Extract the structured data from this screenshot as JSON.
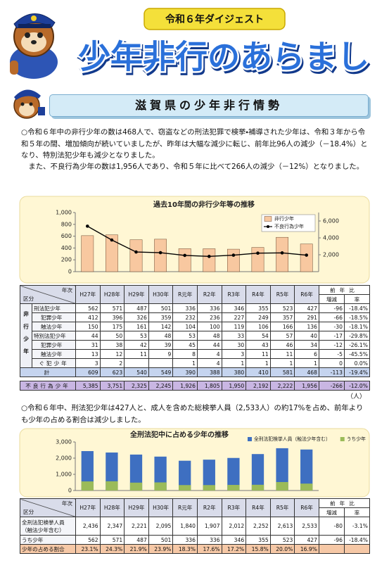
{
  "header": {
    "subtitle": "令和６年ダイジェスト",
    "title": "少年非行のあらまし"
  },
  "section_title": "滋賀県の少年非行情勢",
  "paragraphs": [
    "○令和６年中の非行少年の数は468人で、窃盗などの刑法犯罪で検挙・補導された少年は、令和３年から令和５年の間、増加傾向が続いていましたが、昨年は大幅な減少に転じ、前年比96人の減少（－18.4%）となり、特別法犯少年も減少となりました。",
    "また、不良行為少年の数は1,956人であり、令和５年に比べて266人の減少（－12%）となりました。",
    "○令和６年中、刑法犯少年は427人と、成人を含めた総検挙人員（2,533人）の約17%を占め、前年よりも少年の占める割合は減少しました。"
  ],
  "chart_data": [
    {
      "type": "bar_line",
      "title": "過去10年間の非行少年等の推移",
      "ylim": [
        0,
        1000
      ],
      "yticks": [
        0,
        200,
        400,
        600,
        800,
        {
          "value": 1000,
          "label": "1,000"
        }
      ],
      "y2lim": [
        0,
        7000
      ],
      "y2ticks": [
        {
          "value": 2000,
          "label": "2,000"
        },
        {
          "value": 4000,
          "label": "4,000"
        },
        {
          "value": 6000,
          "label": "6,000"
        }
      ],
      "series": [
        {
          "name": "非行少年",
          "type": "bar",
          "color": "#f8c8a0",
          "values": [
            609,
            623,
            540,
            549,
            390,
            388,
            380,
            410,
            581,
            468
          ]
        },
        {
          "name": "不良行為少年",
          "type": "line",
          "axis": "y2",
          "color": "#000000",
          "values": [
            5385,
            3751,
            2325,
            2245,
            1926,
            1805,
            1950,
            2192,
            2222,
            1956
          ]
        }
      ],
      "legend": "top-right",
      "grid": false
    },
    {
      "type": "bar",
      "title": "全刑法犯中に占める少年の推移",
      "ylim": [
        0,
        3000
      ],
      "yticks": [
        0,
        {
          "value": 1000,
          "label": "1,000"
        },
        {
          "value": 2000,
          "label": "2,000"
        },
        {
          "value": 3000,
          "label": "3,000"
        }
      ],
      "series": [
        {
          "name": "全刑法犯検挙人員（触法少年含む）",
          "color": "#3e6fc1",
          "values": [
            2436,
            2347,
            2221,
            2095,
            1840,
            1907,
            2012,
            2252,
            2613,
            2533
          ]
        },
        {
          "name": "うち少年",
          "color": "#9bbb59",
          "values": [
            562,
            571,
            487,
            501,
            336,
            336,
            346,
            355,
            523,
            427
          ]
        }
      ],
      "bar_mode": "overlay",
      "legend": "top-right",
      "grid": false
    }
  ],
  "tables": [
    {
      "corner_top": "年次",
      "corner_bottom": "区分",
      "columns": [
        "H27年",
        "H28年",
        "H29年",
        "H30年",
        "R元年",
        "R2年",
        "R3年",
        "R4年",
        "R5年",
        "R6年"
      ],
      "change_header": "前年比",
      "change_columns": [
        "増減",
        "率"
      ],
      "group_label": "非行少年",
      "rows": [
        {
          "label": "刑法犯少年",
          "values": [
            562,
            571,
            487,
            501,
            336,
            336,
            346,
            355,
            523,
            427
          ],
          "change": -96,
          "rate": "-18.4%"
        },
        {
          "label": "犯罪少年",
          "values": [
            412,
            396,
            326,
            359,
            232,
            236,
            227,
            249,
            357,
            291
          ],
          "change": -66,
          "rate": "-18.5%"
        },
        {
          "label": "触法少年",
          "values": [
            150,
            175,
            161,
            142,
            104,
            100,
            119,
            106,
            166,
            136
          ],
          "change": -30,
          "rate": "-18.1%"
        },
        {
          "label": "特別法犯少年",
          "values": [
            44,
            50,
            53,
            48,
            53,
            48,
            33,
            54,
            57,
            40
          ],
          "change": -17,
          "rate": "-29.8%"
        },
        {
          "label": "犯罪少年",
          "values": [
            31,
            38,
            42,
            39,
            45,
            44,
            30,
            43,
            46,
            34
          ],
          "change": -12,
          "rate": "-26.1%"
        },
        {
          "label": "触法少年",
          "values": [
            13,
            12,
            11,
            9,
            8,
            4,
            3,
            11,
            11,
            6
          ],
          "change": -5,
          "rate": "-45.5%"
        },
        {
          "label": "ぐ犯少年",
          "values": [
            3,
            2,
            null,
            null,
            1,
            4,
            1,
            1,
            1,
            1
          ],
          "change": 0,
          "rate": "0.0%"
        },
        {
          "label": "計",
          "values": [
            609,
            623,
            540,
            549,
            390,
            388,
            380,
            410,
            581,
            468
          ],
          "change": -113,
          "rate": "-19.4%"
        },
        {
          "label": "不良行為少年",
          "values": [
            "5,385",
            "3,751",
            "2,325",
            "2,245",
            "1,926",
            "1,805",
            "1,950",
            "2,192",
            "2,222",
            "1,956"
          ],
          "change": -266,
          "rate": "-12.0%"
        }
      ],
      "unit": "（人）"
    },
    {
      "corner_top": "年次",
      "corner_bottom": "区分",
      "columns": [
        "H27年",
        "H28年",
        "H29年",
        "H30年",
        "R元年",
        "R2年",
        "R3年",
        "R4年",
        "R5年",
        "R6年"
      ],
      "change_header": "前年比",
      "change_columns": [
        "増減",
        "率"
      ],
      "rows": [
        {
          "label": "全刑法犯検挙人員\n（触法少年含む）",
          "values": [
            "2,436",
            "2,347",
            "2,221",
            "2,095",
            "1,840",
            "1,907",
            "2,012",
            "2,252",
            "2,613",
            "2,533"
          ],
          "change": -80,
          "rate": "-3.1%"
        },
        {
          "label": "うち少年",
          "values": [
            562,
            571,
            487,
            501,
            336,
            336,
            346,
            355,
            523,
            427
          ],
          "change": -96,
          "rate": "-18.4%"
        },
        {
          "label": "少年の占める割合",
          "values": [
            "23.1%",
            "24.3%",
            "21.9%",
            "23.9%",
            "18.3%",
            "17.6%",
            "17.2%",
            "15.8%",
            "20.0%",
            "16.9%"
          ]
        }
      ]
    }
  ]
}
